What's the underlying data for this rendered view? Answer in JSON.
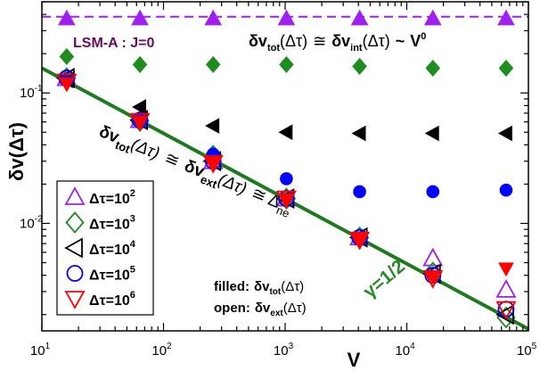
{
  "chart_data": {
    "type": "scatter",
    "xscale": "log",
    "yscale": "log",
    "xlim": [
      10,
      100000
    ],
    "ylim": [
      0.0015,
      0.5
    ],
    "xlabel": "V",
    "ylabel": "δv(Δτ)",
    "x_ticks": [
      {
        "base": "10",
        "exp": "1"
      },
      {
        "base": "10",
        "exp": "2"
      },
      {
        "base": "10",
        "exp": "3"
      },
      {
        "base": "10",
        "exp": "4"
      },
      {
        "base": "10",
        "exp": "5"
      }
    ],
    "y_ticks": [
      {
        "base": "10",
        "exp": "-2"
      },
      {
        "base": "10",
        "exp": "-1"
      }
    ],
    "x": [
      16,
      64,
      256,
      1024,
      4096,
      16384,
      65536
    ],
    "series": [
      {
        "name": "Δτ=10²",
        "marker": "triangle-up",
        "color": "#a020f0",
        "filled": [
          0.45,
          0.45,
          0.45,
          0.45,
          0.45,
          0.45,
          0.45
        ],
        "open": [
          0.13,
          0.062,
          0.03,
          0.0155,
          0.0078,
          0.0054,
          0.0031
        ]
      },
      {
        "name": "Δτ=10³",
        "marker": "diamond",
        "color": "#1e8c1e",
        "filled": [
          0.19,
          0.165,
          0.165,
          0.165,
          0.16,
          0.155,
          0.155
        ],
        "open": [
          0.13,
          0.061,
          0.033,
          0.0155,
          0.0078,
          0.0042,
          0.0019
        ]
      },
      {
        "name": "Δτ=10⁴",
        "marker": "triangle-left",
        "color": "#000000",
        "filled": [
          0.125,
          0.078,
          0.056,
          0.05,
          0.049,
          0.049,
          0.049
        ],
        "open": [
          0.13,
          0.062,
          0.03,
          0.0155,
          0.0078,
          0.0041,
          0.002
        ]
      },
      {
        "name": "Δτ=10⁵",
        "marker": "circle",
        "color": "#0000ff",
        "filled": [
          0.125,
          0.062,
          0.034,
          0.022,
          0.0175,
          0.0175,
          0.018
        ],
        "open": [
          0.13,
          0.062,
          0.03,
          0.0155,
          0.0078,
          0.004,
          0.0022
        ]
      },
      {
        "name": "Δτ=10⁶",
        "marker": "triangle-down",
        "color": "#ff0000",
        "filled": [
          0.118,
          0.06,
          0.029,
          0.0152,
          0.0076,
          0.0039,
          0.0045
        ],
        "open": [
          0.122,
          0.061,
          0.029,
          0.0155,
          0.0075,
          0.0038,
          0.0022
        ]
      }
    ],
    "legend": {
      "location": "bottom-left",
      "entries": [
        {
          "base": "Δτ=10",
          "exp": "2"
        },
        {
          "base": "Δτ=10",
          "exp": "3"
        },
        {
          "base": "Δτ=10",
          "exp": "4"
        },
        {
          "base": "Δτ=10",
          "exp": "5"
        },
        {
          "base": "Δτ=10",
          "exp": "6"
        }
      ]
    },
    "fit_line": {
      "color": "#1e7a1e",
      "x": [
        10,
        100000
      ],
      "y": [
        0.155,
        0.00155
      ]
    },
    "hline": {
      "color": "#a020f0",
      "style": "dashed",
      "y": 0.45
    },
    "annotations": {
      "model": "LSM-A : J=0",
      "gamma": "γ=1/2",
      "filled_label": "filled:",
      "open_label": "open:",
      "dv": "δv",
      "tot": "tot",
      "int": "int",
      "ext": "ext",
      "arg": "(Δτ)",
      "approx": "≅",
      "sim": "~",
      "v0_base": "V",
      "v0_exp": "0",
      "delta": "Δ",
      "ne": "ne"
    }
  }
}
